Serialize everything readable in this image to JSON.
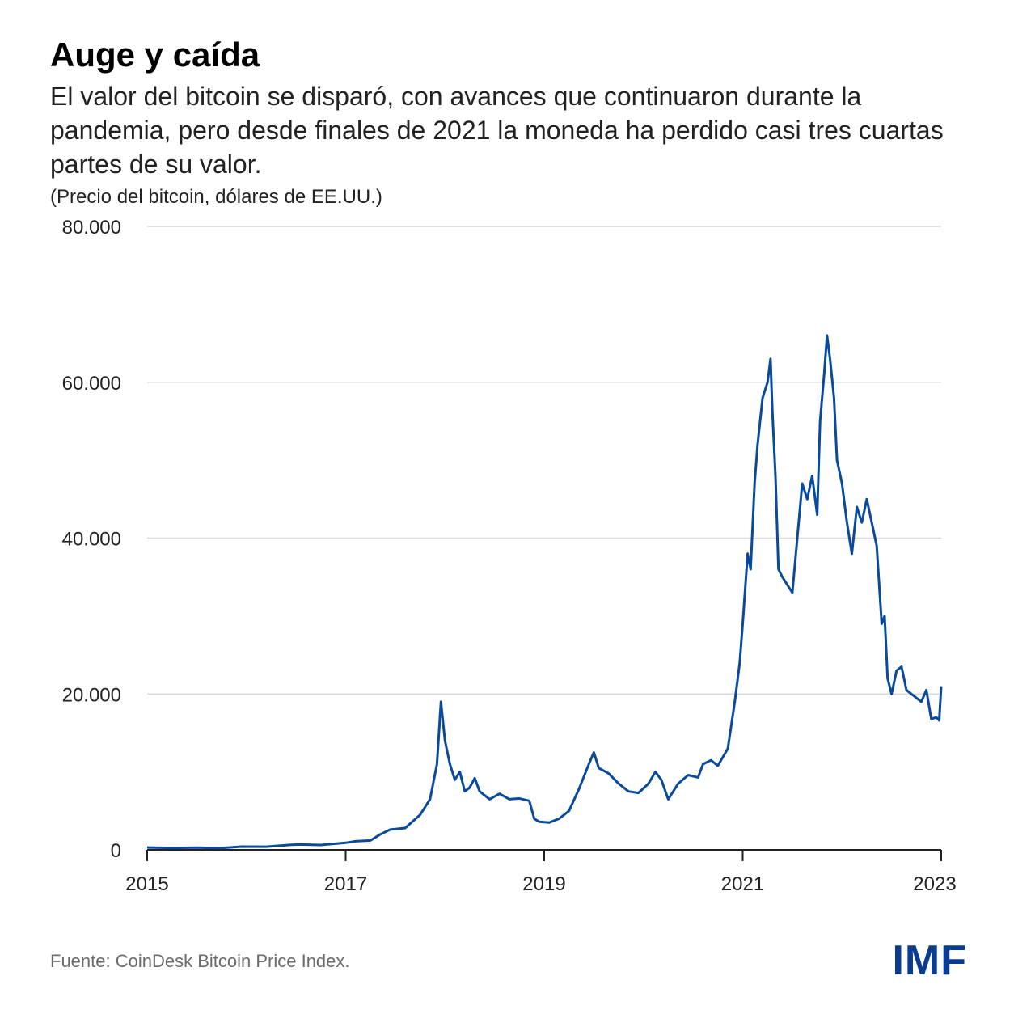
{
  "title": "Auge y caída",
  "subtitle": "El valor del bitcoin se disparó, con avances que continuaron durante la pandemia, pero desde finales de 2021 la moneda ha perdido casi tres cuartas partes de su valor.",
  "unit_note": "(Precio del bitcoin, dólares de EE.UU.)",
  "source": "Fuente: CoinDesk Bitcoin Price Index.",
  "logo": "IMF",
  "colors": {
    "line": "#0a4a9a",
    "grid": "#d9d9d9",
    "axis": "#222222",
    "logo": "#0a3d91"
  },
  "chart_data": {
    "type": "line",
    "title": "",
    "xlabel": "",
    "ylabel": "",
    "xlim": [
      2015,
      2023
    ],
    "ylim": [
      0,
      80000
    ],
    "grid": true,
    "y_ticks": [
      0,
      20000,
      40000,
      60000,
      80000
    ],
    "y_tick_labels": [
      "0",
      "20.000",
      "40.000",
      "60.000",
      "80.000"
    ],
    "x_ticks": [
      2015,
      2017,
      2019,
      2021,
      2023
    ],
    "x_tick_labels": [
      "2015",
      "2017",
      "2019",
      "2021",
      "2023"
    ],
    "series": [
      {
        "x": [
          2015.0,
          2015.25,
          2015.5,
          2015.75,
          2015.95,
          2016.2,
          2016.45,
          2016.55,
          2016.75,
          2017.0,
          2017.1,
          2017.25,
          2017.35,
          2017.45,
          2017.6,
          2017.75,
          2017.85,
          2017.92,
          2017.96,
          2018.0,
          2018.05,
          2018.1,
          2018.15,
          2018.2,
          2018.25,
          2018.3,
          2018.35,
          2018.45,
          2018.55,
          2018.65,
          2018.75,
          2018.85,
          2018.9,
          2018.95,
          2019.05,
          2019.15,
          2019.25,
          2019.35,
          2019.45,
          2019.5,
          2019.55,
          2019.65,
          2019.75,
          2019.85,
          2019.95,
          2020.05,
          2020.12,
          2020.18,
          2020.25,
          2020.35,
          2020.45,
          2020.55,
          2020.6,
          2020.68,
          2020.75,
          2020.85,
          2020.92,
          2020.97,
          2021.0,
          2021.05,
          2021.08,
          2021.12,
          2021.15,
          2021.2,
          2021.25,
          2021.28,
          2021.3,
          2021.33,
          2021.36,
          2021.4,
          2021.45,
          2021.5,
          2021.55,
          2021.6,
          2021.65,
          2021.7,
          2021.75,
          2021.78,
          2021.82,
          2021.85,
          2021.88,
          2021.92,
          2021.95,
          2022.0,
          2022.05,
          2022.1,
          2022.15,
          2022.2,
          2022.25,
          2022.3,
          2022.35,
          2022.4,
          2022.43,
          2022.46,
          2022.5,
          2022.55,
          2022.6,
          2022.65,
          2022.7,
          2022.75,
          2022.8,
          2022.85,
          2022.9,
          2022.95,
          2022.98,
          2023.0
        ],
        "y": [
          300,
          250,
          280,
          240,
          420,
          400,
          650,
          680,
          620,
          900,
          1100,
          1200,
          2000,
          2600,
          2800,
          4500,
          6500,
          11000,
          19000,
          14000,
          11000,
          9000,
          10000,
          7500,
          8000,
          9200,
          7500,
          6500,
          7200,
          6500,
          6600,
          6300,
          4000,
          3600,
          3500,
          4000,
          5000,
          7800,
          11000,
          12500,
          10500,
          9800,
          8500,
          7500,
          7300,
          8500,
          10000,
          9000,
          6500,
          8500,
          9600,
          9300,
          11000,
          11500,
          10800,
          13000,
          19000,
          24000,
          29000,
          38000,
          36000,
          47000,
          52000,
          58000,
          60000,
          63000,
          56000,
          48000,
          36000,
          35000,
          34000,
          33000,
          40000,
          47000,
          45000,
          48000,
          43000,
          55000,
          61000,
          66000,
          63000,
          58000,
          50000,
          47000,
          42000,
          38000,
          44000,
          42000,
          45000,
          42000,
          39000,
          29000,
          30000,
          22000,
          20000,
          23000,
          23500,
          20500,
          20000,
          19500,
          19000,
          20500,
          16800,
          17000,
          16600,
          21000
        ]
      }
    ]
  }
}
